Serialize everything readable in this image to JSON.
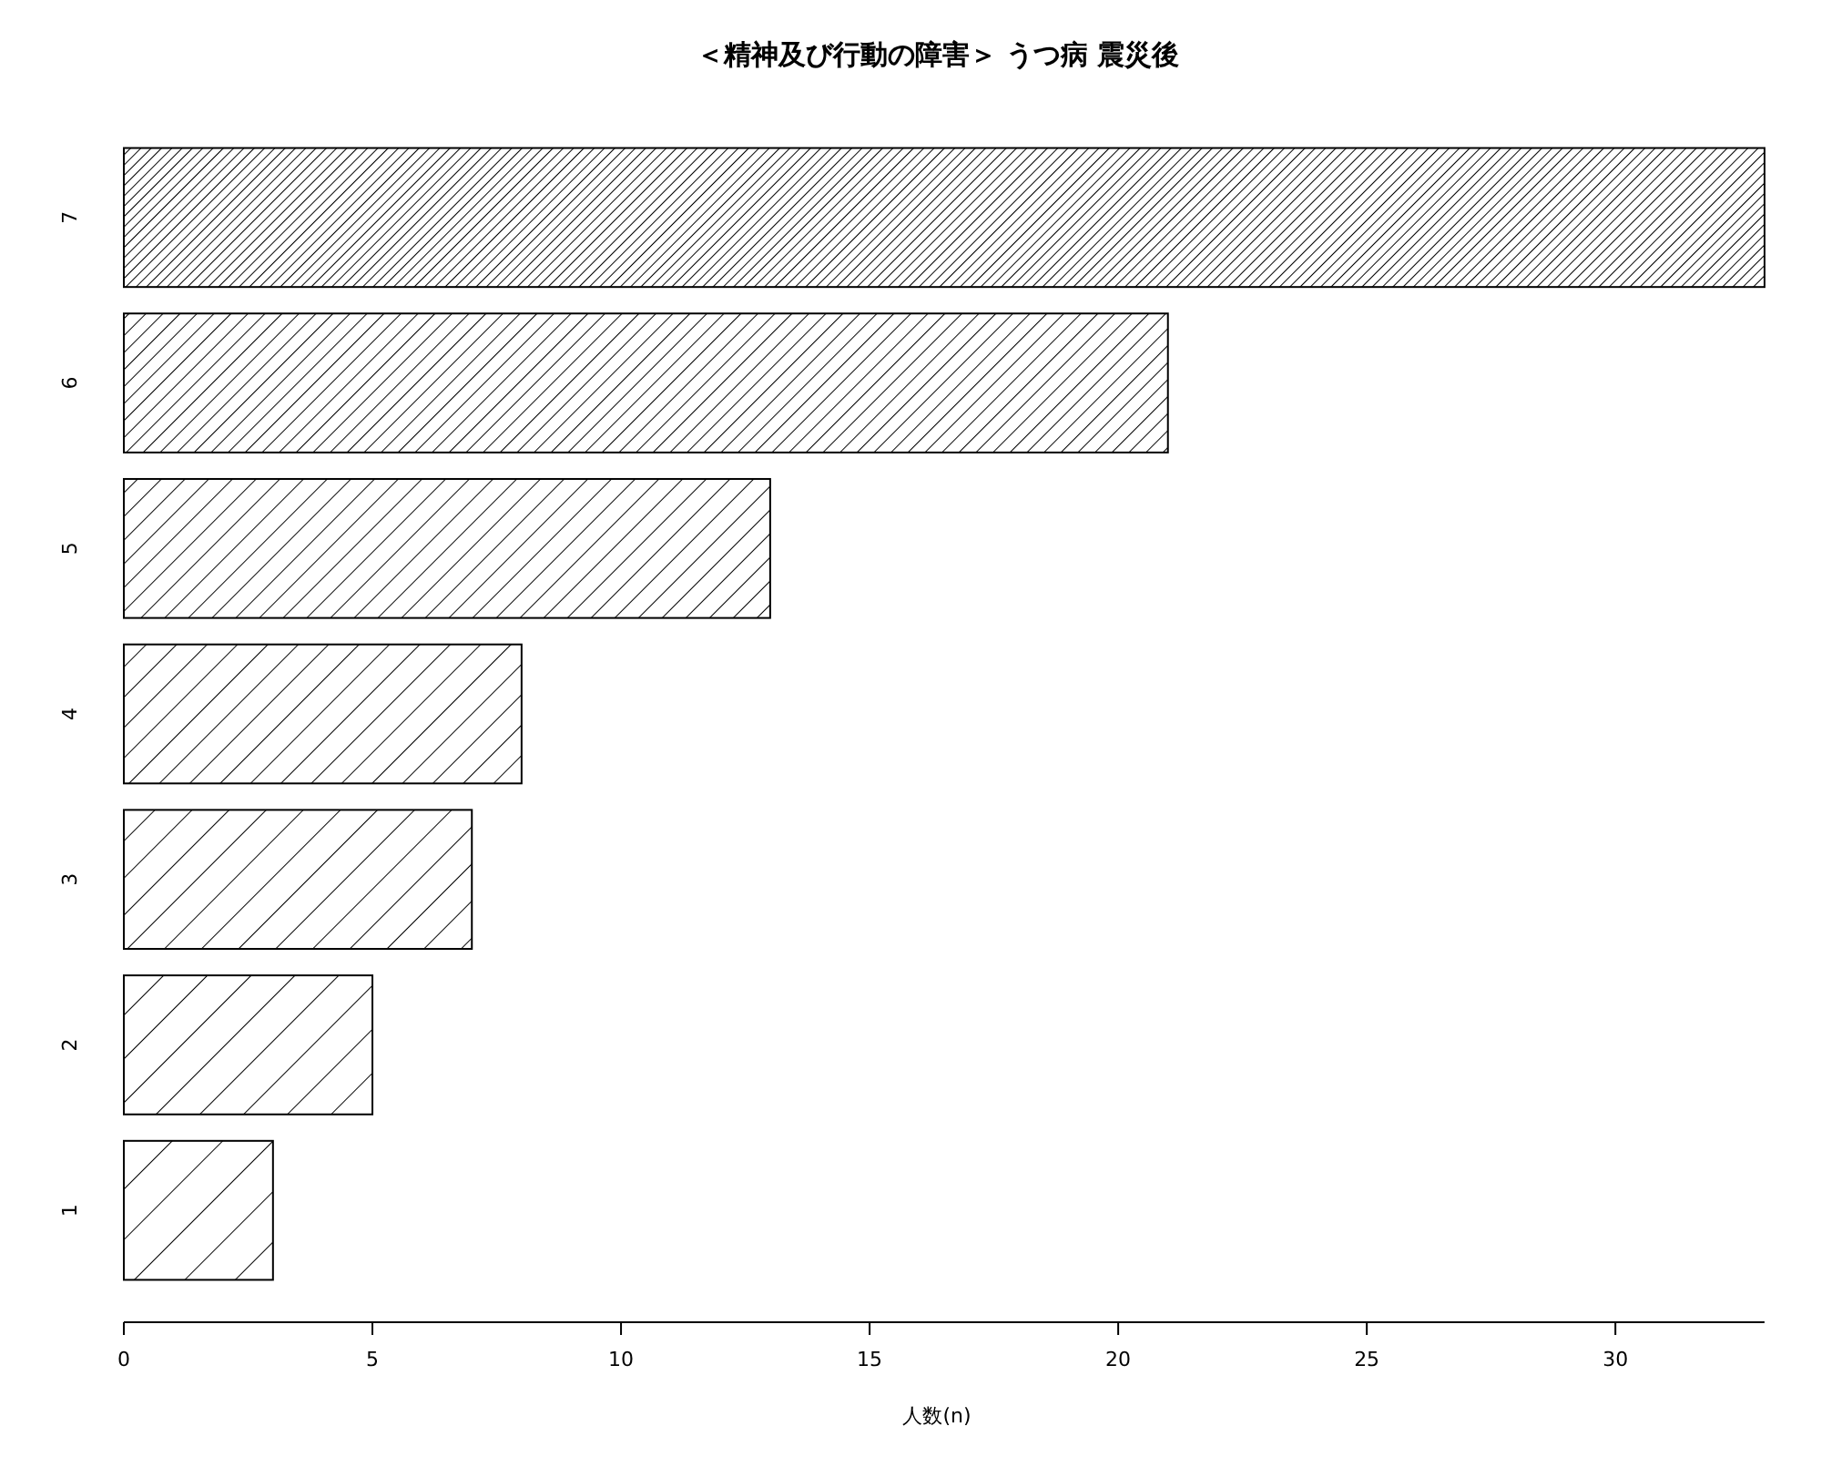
{
  "chart_data": {
    "type": "bar",
    "orientation": "horizontal",
    "title": "＜精神及び行動の障害＞ うつ病 震災後",
    "xlabel": "人数(n)",
    "categories": [
      "7",
      "6",
      "5",
      "4",
      "3",
      "2",
      "1"
    ],
    "values": [
      33,
      21,
      13,
      8,
      7,
      5,
      3
    ],
    "color": "#000000",
    "xlim": [
      0,
      33
    ],
    "xticks": [
      0,
      5,
      10,
      15,
      20,
      25,
      30
    ],
    "grid": false
  }
}
